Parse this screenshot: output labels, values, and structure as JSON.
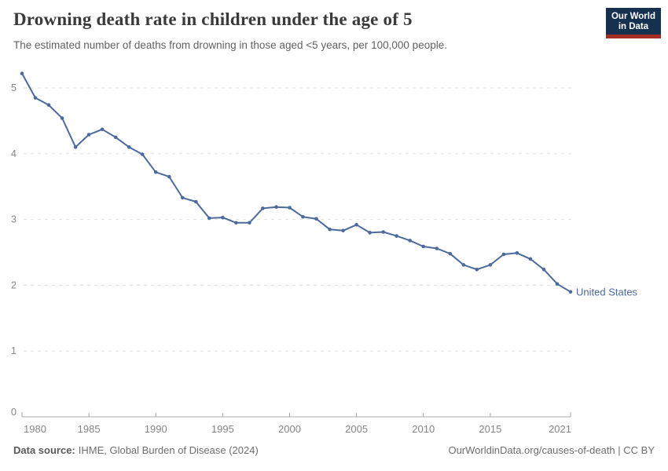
{
  "header": {
    "title": "Drowning death rate in children under the age of 5",
    "subtitle": "The estimated number of deaths from drowning in those aged <5 years, per 100,000 people."
  },
  "logo": {
    "line1": "Our World",
    "line2": "in Data"
  },
  "chart_data": {
    "type": "line",
    "title": "Drowning death rate in children under the age of 5",
    "subtitle": "The estimated number of deaths from drowning in those aged <5 years, per 100,000 people.",
    "xlabel": "",
    "ylabel": "",
    "ylim": [
      0,
      5.4
    ],
    "yticks": [
      0,
      1,
      2,
      3,
      4,
      5
    ],
    "xticks": [
      1980,
      1985,
      1990,
      1995,
      2000,
      2005,
      2010,
      2015,
      2021
    ],
    "grid": "horizontal-dashed",
    "legend_position": "end-of-line-label",
    "x": [
      1980,
      1981,
      1982,
      1983,
      1984,
      1985,
      1986,
      1987,
      1988,
      1989,
      1990,
      1991,
      1992,
      1993,
      1994,
      1995,
      1996,
      1997,
      1998,
      1999,
      2000,
      2001,
      2002,
      2003,
      2004,
      2005,
      2006,
      2007,
      2008,
      2009,
      2010,
      2011,
      2012,
      2013,
      2014,
      2015,
      2016,
      2017,
      2018,
      2019,
      2020,
      2021
    ],
    "series": [
      {
        "name": "United States",
        "color": "#4C6A9C",
        "values": [
          5.22,
          4.85,
          4.74,
          4.54,
          4.1,
          4.29,
          4.37,
          4.25,
          4.1,
          3.99,
          3.72,
          3.65,
          3.33,
          3.27,
          3.02,
          3.03,
          2.95,
          2.95,
          3.17,
          3.19,
          3.18,
          3.04,
          3.01,
          2.85,
          2.83,
          2.92,
          2.8,
          2.81,
          2.75,
          2.68,
          2.59,
          2.56,
          2.48,
          2.31,
          2.24,
          2.31,
          2.47,
          2.49,
          2.4,
          2.24,
          2.02,
          1.9
        ]
      }
    ]
  },
  "footer": {
    "source_label": "Data source:",
    "source_text": "IHME, Global Burden of Disease (2024)",
    "right_text": "OurWorldinData.org/causes-of-death | CC BY"
  },
  "colors": {
    "line": "#4C6A9C",
    "grid": "#e0e0e0",
    "axis": "#a8a8a8",
    "tick_label": "#858585",
    "title": "#3a3a3a",
    "subtitle": "#616161",
    "logo_bg": "#16304f",
    "logo_red": "#a62c24"
  }
}
